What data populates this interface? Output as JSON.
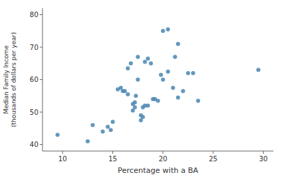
{
  "chart_data": {
    "type": "scatter",
    "xlabel": "Percentage with a BA",
    "ylabel": "Median Family Income\n(thousands of dollars per year)",
    "xlim": [
      8,
      31
    ],
    "ylim": [
      38,
      82
    ],
    "xticks": [
      10,
      15,
      20,
      25,
      30
    ],
    "yticks": [
      40,
      50,
      60,
      70,
      80
    ],
    "color": "#4a86b0",
    "grid": false,
    "x": [
      9.5,
      12.5,
      13.0,
      14.0,
      14.5,
      14.8,
      15.0,
      15.5,
      15.8,
      16.0,
      16.2,
      16.5,
      16.5,
      16.8,
      17.0,
      17.0,
      17.2,
      17.2,
      17.3,
      17.5,
      17.5,
      17.8,
      17.8,
      18.0,
      18.0,
      18.2,
      18.2,
      18.5,
      18.5,
      18.8,
      19.0,
      19.2,
      19.5,
      19.8,
      20.0,
      20.0,
      20.5,
      20.5,
      21.0,
      21.2,
      21.5,
      21.5,
      22.0,
      22.5,
      23.0,
      23.5,
      29.5
    ],
    "y": [
      43.0,
      41.0,
      46.0,
      44.0,
      45.5,
      44.5,
      47.0,
      57.0,
      57.5,
      56.5,
      56.5,
      55.5,
      63.5,
      65.0,
      50.5,
      52.5,
      51.5,
      53.0,
      55.0,
      60.0,
      67.0,
      49.0,
      47.5,
      48.5,
      51.5,
      52.0,
      65.5,
      52.0,
      66.5,
      65.0,
      54.0,
      54.0,
      53.5,
      61.5,
      60.0,
      75.0,
      62.5,
      75.5,
      57.5,
      67.0,
      71.0,
      54.5,
      56.5,
      62.0,
      62.0,
      53.5,
      63.0
    ]
  }
}
